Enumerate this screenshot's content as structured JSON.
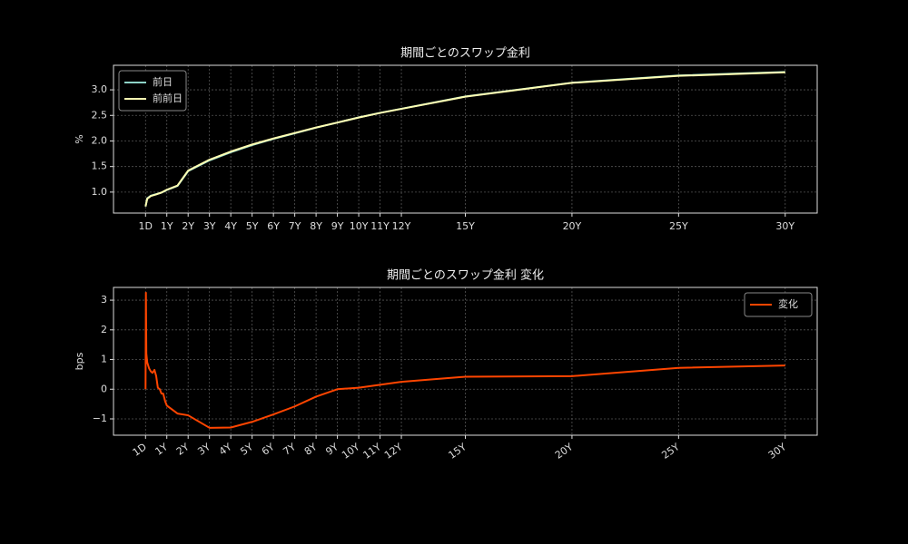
{
  "chart_data": [
    {
      "type": "line",
      "title": "期間ごとのスワップ金利",
      "ylabel": "%",
      "x": [
        0.0027,
        0.083,
        0.25,
        0.5,
        0.75,
        1,
        1.5,
        2,
        3,
        4,
        5,
        6,
        7,
        8,
        9,
        10,
        11,
        12,
        15,
        20,
        25,
        30
      ],
      "series": [
        {
          "name": "前日",
          "color": "#8dd3c7",
          "values": [
            0.72,
            0.88,
            0.93,
            0.96,
            0.99,
            1.04,
            1.12,
            1.41,
            1.62,
            1.78,
            1.92,
            2.04,
            2.15,
            2.26,
            2.36,
            2.46,
            2.55,
            2.63,
            2.87,
            3.14,
            3.28,
            3.35
          ]
        },
        {
          "name": "前前日",
          "color": "#ffffb3",
          "values": [
            0.72,
            0.871,
            0.924,
            0.955,
            0.991,
            1.046,
            1.128,
            1.42,
            1.633,
            1.793,
            1.931,
            2.048,
            2.156,
            2.263,
            2.36,
            2.459,
            2.548,
            2.628,
            2.866,
            3.136,
            3.273,
            3.342
          ]
        }
      ],
      "xlim": [
        -1.5,
        31.5
      ],
      "ylim": [
        0.59,
        3.48
      ],
      "xticks": [
        {
          "value": 0.0027,
          "label": "1D"
        },
        {
          "value": 1,
          "label": "1Y"
        },
        {
          "value": 2,
          "label": "2Y"
        },
        {
          "value": 3,
          "label": "3Y"
        },
        {
          "value": 4,
          "label": "4Y"
        },
        {
          "value": 5,
          "label": "5Y"
        },
        {
          "value": 6,
          "label": "6Y"
        },
        {
          "value": 7,
          "label": "7Y"
        },
        {
          "value": 8,
          "label": "8Y"
        },
        {
          "value": 9,
          "label": "9Y"
        },
        {
          "value": 10,
          "label": "10Y"
        },
        {
          "value": 11,
          "label": "11Y"
        },
        {
          "value": 12,
          "label": "12Y"
        },
        {
          "value": 15,
          "label": "15Y"
        },
        {
          "value": 20,
          "label": "20Y"
        },
        {
          "value": 25,
          "label": "25Y"
        },
        {
          "value": 30,
          "label": "30Y"
        }
      ],
      "yticks": [
        {
          "value": 1,
          "label": "1.0"
        },
        {
          "value": 1.5,
          "label": "1.5"
        },
        {
          "value": 2,
          "label": "2.0"
        },
        {
          "value": 2.5,
          "label": "2.5"
        },
        {
          "value": 3,
          "label": "3.0"
        }
      ],
      "grid": true,
      "legend": "upper left"
    },
    {
      "type": "line",
      "title": "期間ごとのスワップ金利 変化",
      "ylabel": "bps",
      "x": [
        0.0027,
        0.02,
        0.04,
        0.083,
        0.17,
        0.25,
        0.33,
        0.42,
        0.5,
        0.58,
        0.67,
        0.75,
        0.83,
        0.92,
        1,
        1.5,
        2,
        3,
        4,
        5,
        6,
        7,
        8,
        9,
        10,
        12,
        15,
        20,
        25,
        30
      ],
      "series": [
        {
          "name": "変化",
          "color": "#ff4500",
          "values": [
            0,
            3.25,
            1.2,
            0.9,
            0.7,
            0.6,
            0.55,
            0.65,
            0.45,
            0.05,
            0.0,
            -0.15,
            -0.15,
            -0.4,
            -0.55,
            -0.82,
            -0.88,
            -1.3,
            -1.29,
            -1.1,
            -0.85,
            -0.58,
            -0.25,
            0,
            0.05,
            0.25,
            0.42,
            0.44,
            0.72,
            0.8
          ]
        }
      ],
      "xlim": [
        -1.5,
        31.5
      ],
      "ylim": [
        -1.55,
        3.43
      ],
      "xticks": [
        {
          "value": 0.0027,
          "label": "1D"
        },
        {
          "value": 1,
          "label": "1Y"
        },
        {
          "value": 2,
          "label": "2Y"
        },
        {
          "value": 3,
          "label": "3Y"
        },
        {
          "value": 4,
          "label": "4Y"
        },
        {
          "value": 5,
          "label": "5Y"
        },
        {
          "value": 6,
          "label": "6Y"
        },
        {
          "value": 7,
          "label": "7Y"
        },
        {
          "value": 8,
          "label": "8Y"
        },
        {
          "value": 9,
          "label": "9Y"
        },
        {
          "value": 10,
          "label": "10Y"
        },
        {
          "value": 11,
          "label": "11Y"
        },
        {
          "value": 12,
          "label": "12Y"
        },
        {
          "value": 15,
          "label": "15Y"
        },
        {
          "value": 20,
          "label": "20Y"
        },
        {
          "value": 25,
          "label": "25Y"
        },
        {
          "value": 30,
          "label": "30Y"
        }
      ],
      "yticks": [
        {
          "value": -1,
          "label": "−1"
        },
        0,
        1,
        2,
        3
      ],
      "grid": true,
      "legend": "upper right"
    }
  ]
}
